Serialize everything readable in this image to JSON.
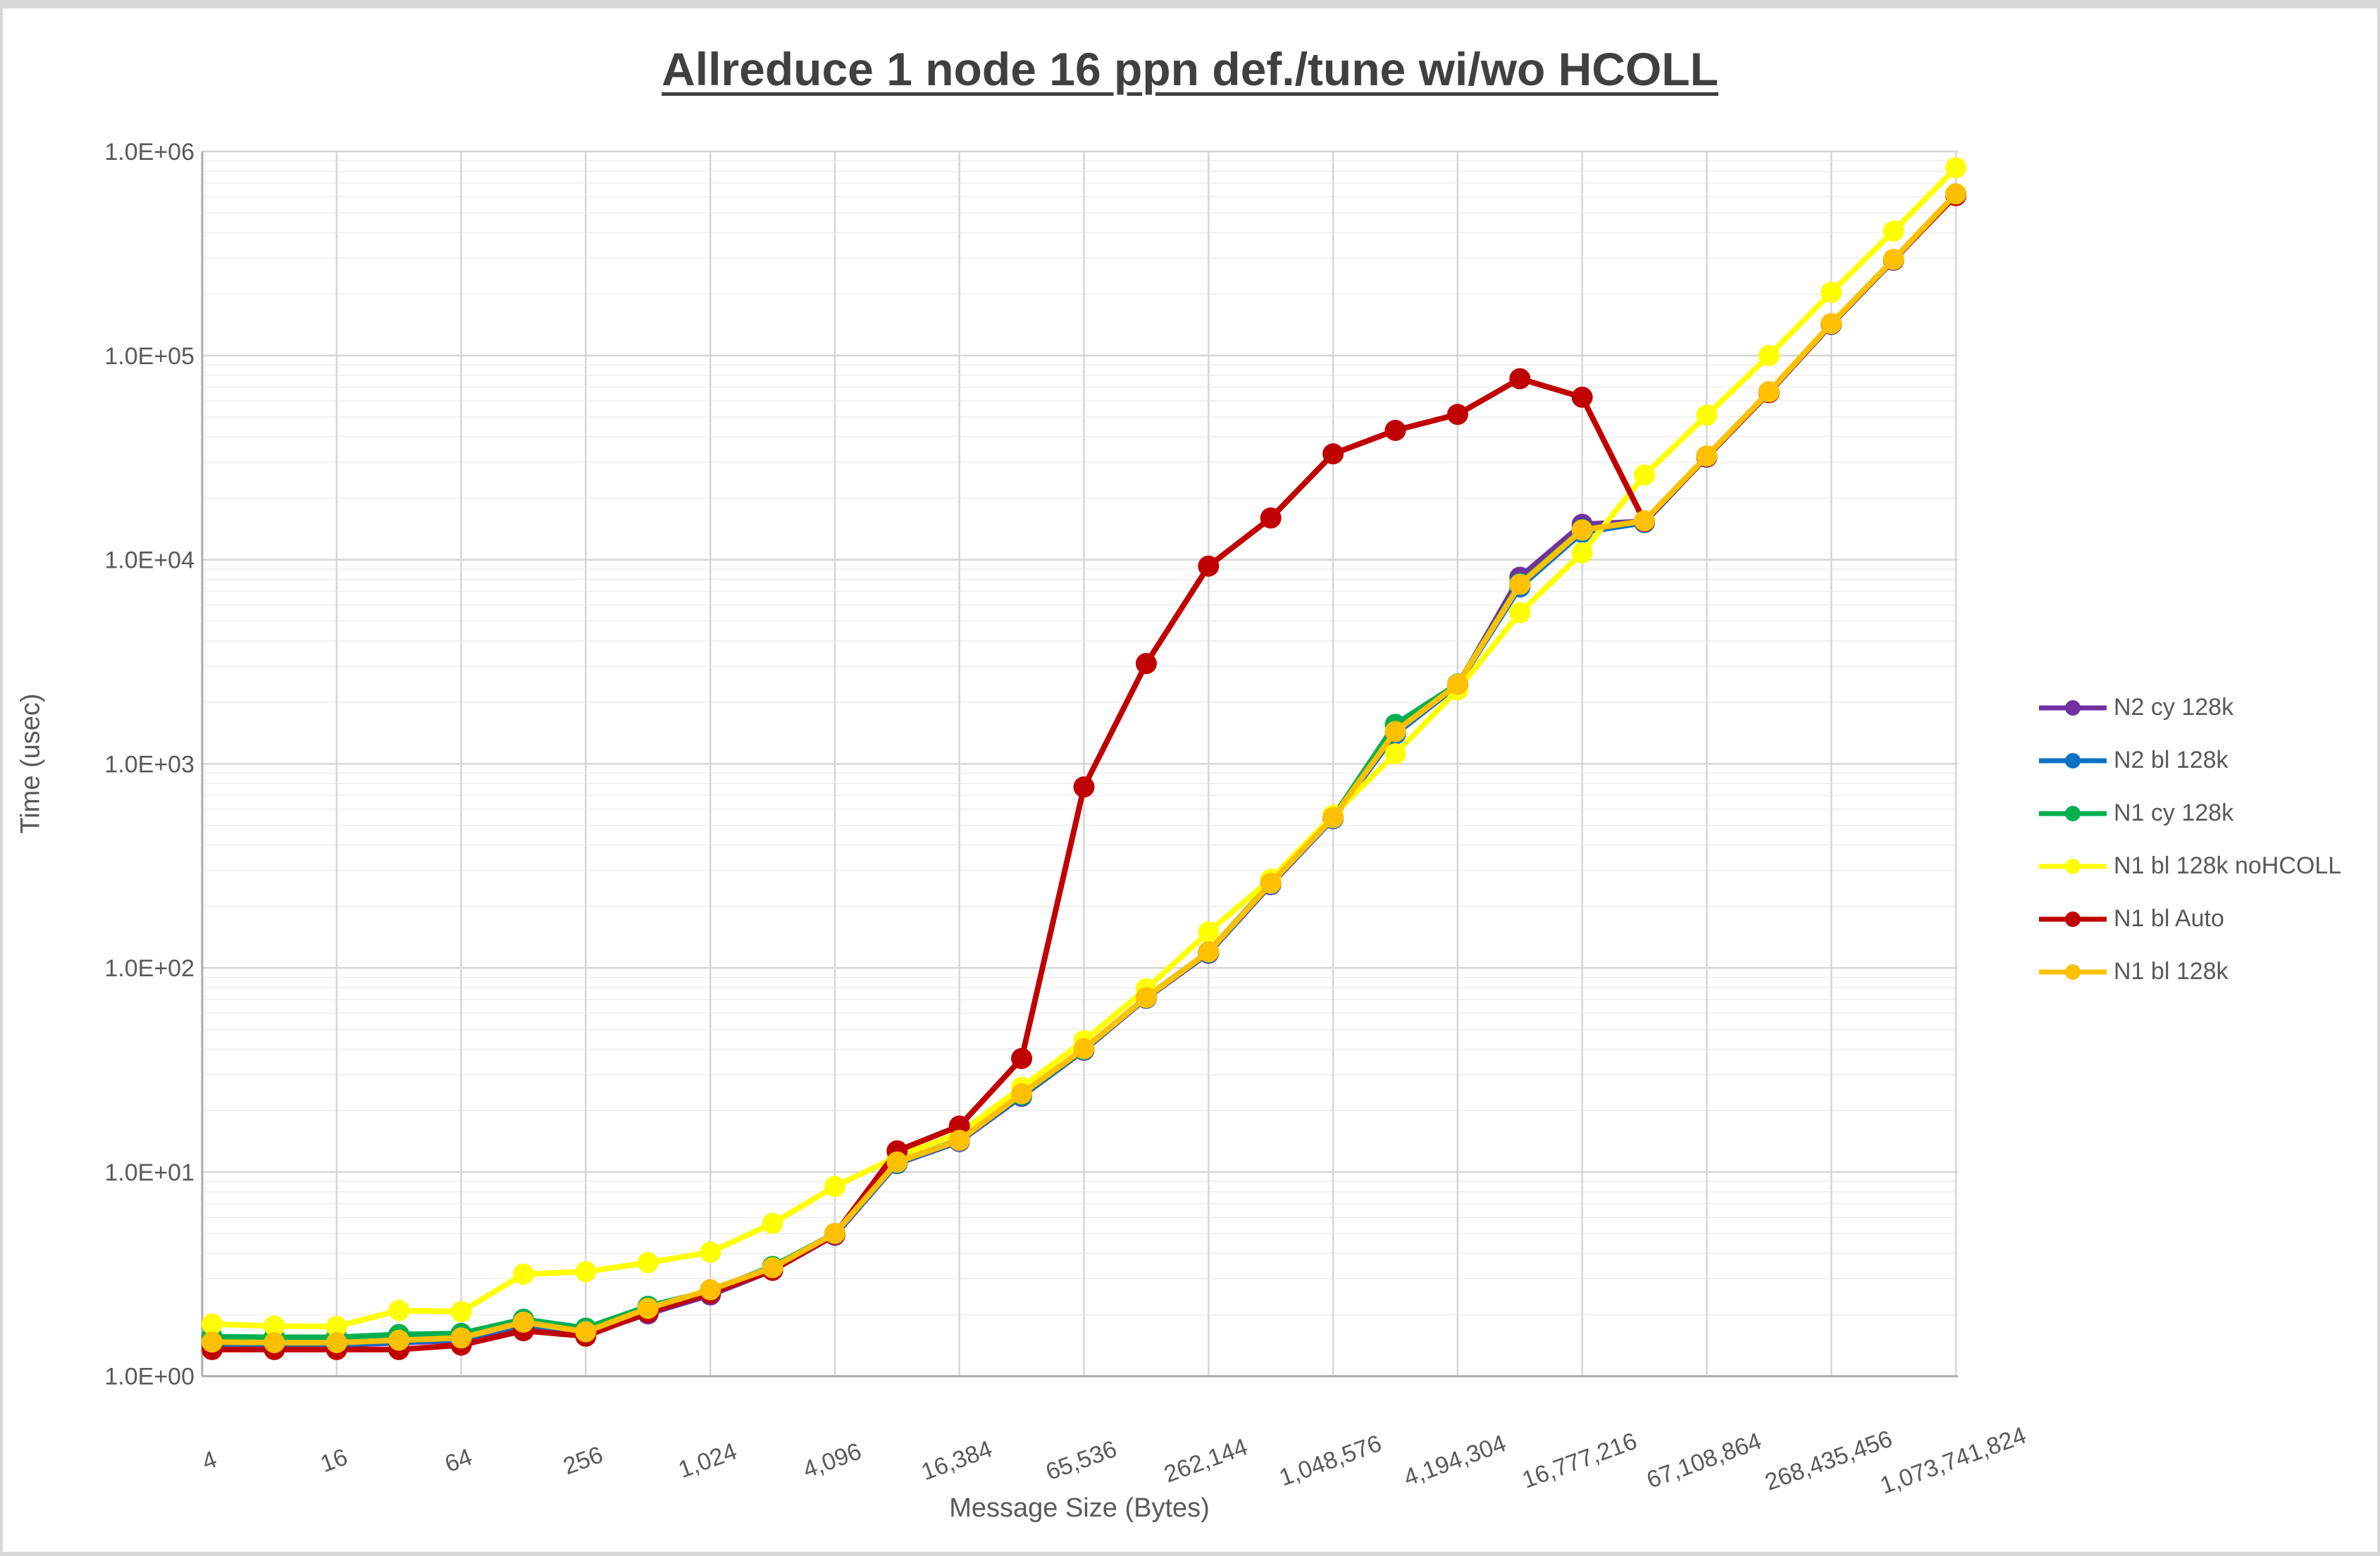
{
  "title": "Allreduce 1 node 16 ppn def./tune wi/wo HCOLL",
  "axes": {
    "y_title": "Time (usec)",
    "x_title": "Message Size (Bytes)",
    "y_tick_labels": [
      "1.0E+00",
      "1.0E+01",
      "1.0E+02",
      "1.0E+03",
      "1.0E+04",
      "1.0E+05",
      "1.0E+06"
    ],
    "x_tick_labels": [
      "4",
      "16",
      "64",
      "256",
      "1,024",
      "4,096",
      "16,384",
      "65,536",
      "262,144",
      "1,048,576",
      "4,194,304",
      "16,777,216",
      "67,108,864",
      "268,435,456",
      "1,073,741,824"
    ]
  },
  "legend": [
    {
      "label": "N2 cy 128k",
      "color": "#7030A0"
    },
    {
      "label": "N2 bl 128k",
      "color": "#0B72C4"
    },
    {
      "label": "N1 cy 128k",
      "color": "#00B050"
    },
    {
      "label": "N1 bl 128k noHCOLL",
      "color": "#FFFF00"
    },
    {
      "label": "N1 bl Auto",
      "color": "#C00000"
    },
    {
      "label": "N1 bl 128k",
      "color": "#FFC000"
    }
  ],
  "colors": {
    "title_text": "#404040",
    "axis_text": "#595959",
    "major_grid": "#D6D6D6",
    "minor_grid": "#EDEDED",
    "axis_line": "#ABABAB",
    "frame": "#D7D7D7",
    "background": "#FFFFFF"
  },
  "chart_data": {
    "type": "line",
    "title": "Allreduce 1 node 16 ppn def./tune wi/wo HCOLL",
    "xlabel": "Message Size (Bytes)",
    "ylabel": "Time (usec)",
    "x_scale": "log2",
    "y_scale": "log10",
    "ylim": [
      1,
      1000000
    ],
    "grid": "major+minor horizontal log lines, vertical lines at labeled ticks",
    "legend_position": "right",
    "x": [
      4,
      8,
      16,
      32,
      64,
      128,
      256,
      512,
      1024,
      2048,
      4096,
      8192,
      16384,
      32768,
      65536,
      131072,
      262144,
      524288,
      1048576,
      2097152,
      4194304,
      8388608,
      16777216,
      33554432,
      67108864,
      134217728,
      268435456,
      536870912,
      1073741824
    ],
    "x_tick_values": [
      4,
      16,
      64,
      256,
      1024,
      4096,
      16384,
      65536,
      262144,
      1048576,
      4194304,
      16777216,
      67108864,
      268435456,
      1073741824
    ],
    "series": [
      {
        "name": "N2 cy 128k",
        "color": "#7030A0",
        "values": [
          1.43,
          1.42,
          1.42,
          1.46,
          1.5,
          1.78,
          1.6,
          2.02,
          2.5,
          3.3,
          4.9,
          11.0,
          14.1,
          23.5,
          39.5,
          71,
          118,
          256,
          538,
          1400,
          2420,
          8200,
          14900,
          15400,
          31800,
          65800,
          142000,
          293000,
          612000
        ]
      },
      {
        "name": "N2 bl 128k",
        "color": "#0B72C4",
        "values": [
          1.44,
          1.43,
          1.43,
          1.47,
          1.52,
          1.8,
          1.62,
          2.12,
          2.58,
          3.35,
          4.95,
          11.05,
          14.2,
          23.7,
          39.8,
          71.3,
          119,
          258,
          540,
          1400,
          2430,
          7350,
          13600,
          15200,
          31900,
          66000,
          142500,
          294000,
          615000
        ]
      },
      {
        "name": "N1 cy 128k",
        "color": "#00B050",
        "values": [
          1.56,
          1.55,
          1.55,
          1.6,
          1.62,
          1.9,
          1.72,
          2.2,
          2.62,
          3.45,
          5.0,
          11.15,
          14.4,
          24.0,
          40.0,
          71.8,
          120,
          262,
          548,
          1560,
          2460,
          7650,
          14050,
          15450,
          32100,
          66300,
          143000,
          295000,
          618000
        ]
      },
      {
        "name": "N1 bl 128k noHCOLL",
        "color": "#FFFF00",
        "values": [
          1.8,
          1.76,
          1.75,
          2.1,
          2.07,
          3.16,
          3.25,
          3.6,
          4.05,
          5.6,
          8.5,
          11.9,
          15.5,
          26.0,
          44.0,
          79,
          150,
          272,
          560,
          1120,
          2300,
          5500,
          10800,
          26000,
          51000,
          100000,
          204000,
          407000,
          832000
        ]
      },
      {
        "name": "N1 bl Auto",
        "color": "#C00000",
        "values": [
          1.35,
          1.35,
          1.35,
          1.35,
          1.42,
          1.67,
          1.57,
          2.05,
          2.55,
          3.3,
          4.95,
          12.7,
          16.8,
          36,
          770,
          3100,
          9300,
          16000,
          33000,
          43000,
          51500,
          77000,
          62500,
          15400,
          32000,
          66000,
          143000,
          295000,
          608000
        ]
      },
      {
        "name": "N1 bl 128k",
        "color": "#FFC000",
        "values": [
          1.47,
          1.46,
          1.46,
          1.5,
          1.54,
          1.84,
          1.65,
          2.15,
          2.65,
          3.4,
          5.0,
          11.2,
          14.3,
          24.2,
          40.2,
          71.6,
          120,
          260,
          545,
          1440,
          2450,
          7570,
          13970,
          15500,
          32200,
          66500,
          143500,
          296000,
          620000
        ]
      }
    ]
  }
}
